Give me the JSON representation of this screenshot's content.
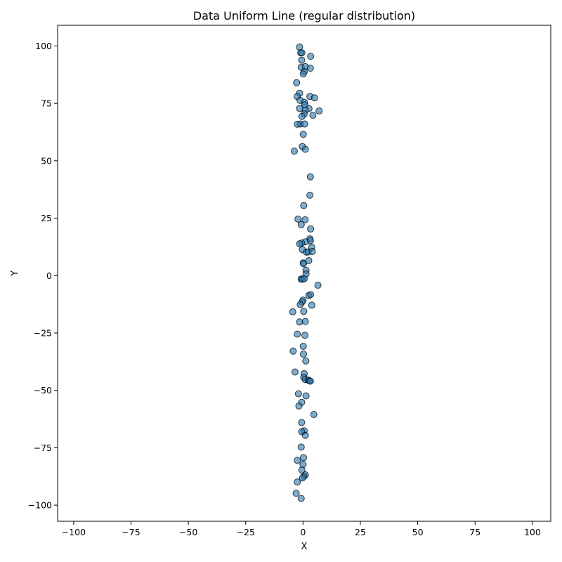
{
  "chart_data": {
    "type": "scatter",
    "title": "Data Uniform Line (regular distribution)",
    "xlabel": "X",
    "ylabel": "Y",
    "xlim": [
      -107,
      108
    ],
    "ylim": [
      -107,
      109
    ],
    "xticks": [
      -100,
      -75,
      -50,
      -25,
      0,
      25,
      50,
      75,
      100
    ],
    "yticks": [
      -100,
      -75,
      -50,
      -25,
      0,
      25,
      50,
      75,
      100
    ],
    "grid": false,
    "marker_color": "#1f77b4",
    "marker_edge_color": "#000000",
    "marker_alpha": 0.6,
    "points": [
      [
        -1.5,
        99.5
      ],
      [
        -1.0,
        97.0
      ],
      [
        -0.5,
        97.0
      ],
      [
        3.3,
        95.5
      ],
      [
        -0.6,
        93.8
      ],
      [
        -0.8,
        90.7
      ],
      [
        1.0,
        91.0
      ],
      [
        3.2,
        90.3
      ],
      [
        0.5,
        88.8
      ],
      [
        0.1,
        87.8
      ],
      [
        -2.8,
        84.0
      ],
      [
        -1.5,
        79.4
      ],
      [
        -2.5,
        78.0
      ],
      [
        3.0,
        78.0
      ],
      [
        5.0,
        77.4
      ],
      [
        -1.3,
        76.3
      ],
      [
        0.6,
        75.5
      ],
      [
        0.8,
        74.4
      ],
      [
        -1.5,
        72.8
      ],
      [
        2.6,
        72.7
      ],
      [
        1.0,
        72.0
      ],
      [
        7.0,
        71.7
      ],
      [
        0.5,
        70.4
      ],
      [
        4.3,
        69.8
      ],
      [
        -0.5,
        69.3
      ],
      [
        -1.2,
        66.0
      ],
      [
        -2.5,
        65.9
      ],
      [
        0.7,
        66.0
      ],
      [
        0.1,
        61.5
      ],
      [
        -0.3,
        56.2
      ],
      [
        1.0,
        55.0
      ],
      [
        -3.8,
        54.2
      ],
      [
        3.2,
        43.0
      ],
      [
        3.0,
        35.0
      ],
      [
        0.3,
        30.5
      ],
      [
        -2.2,
        24.6
      ],
      [
        0.9,
        24.3
      ],
      [
        -0.8,
        22.2
      ],
      [
        3.3,
        20.3
      ],
      [
        3.0,
        16.0
      ],
      [
        3.2,
        15.2
      ],
      [
        1.0,
        14.7
      ],
      [
        -0.6,
        14.2
      ],
      [
        -1.5,
        13.8
      ],
      [
        3.8,
        12.3
      ],
      [
        -0.3,
        11.3
      ],
      [
        1.5,
        10.2
      ],
      [
        2.3,
        10.3
      ],
      [
        4.0,
        10.5
      ],
      [
        2.5,
        6.5
      ],
      [
        0.1,
        5.5
      ],
      [
        0.2,
        5.2
      ],
      [
        1.3,
        2.3
      ],
      [
        1.3,
        0.7
      ],
      [
        -0.8,
        -1.5
      ],
      [
        -0.3,
        -1.6
      ],
      [
        0.5,
        -1.4
      ],
      [
        6.5,
        -4.2
      ],
      [
        2.5,
        -8.7
      ],
      [
        3.3,
        -8.3
      ],
      [
        0.0,
        -10.7
      ],
      [
        -0.4,
        -11.5
      ],
      [
        -1.2,
        -12.6
      ],
      [
        3.8,
        -12.9
      ],
      [
        0.3,
        -15.6
      ],
      [
        -4.5,
        -15.8
      ],
      [
        -1.5,
        -20.2
      ],
      [
        1.0,
        -20.0
      ],
      [
        -2.5,
        -25.5
      ],
      [
        0.8,
        -26.0
      ],
      [
        0.1,
        -30.8
      ],
      [
        0.2,
        -34.2
      ],
      [
        1.2,
        -37.2
      ],
      [
        -4.3,
        -32.9
      ],
      [
        -3.5,
        -42.0
      ],
      [
        0.5,
        -42.7
      ],
      [
        0.3,
        -44.3
      ],
      [
        1.0,
        -45.3
      ],
      [
        2.2,
        -45.5
      ],
      [
        2.8,
        -45.8
      ],
      [
        3.2,
        -46.0
      ],
      [
        -2.0,
        -51.5
      ],
      [
        1.3,
        -52.4
      ],
      [
        -0.6,
        -55.2
      ],
      [
        -1.8,
        -56.8
      ],
      [
        4.7,
        -60.5
      ],
      [
        -0.6,
        -64.0
      ],
      [
        0.5,
        -67.6
      ],
      [
        -0.6,
        -68.0
      ],
      [
        1.0,
        -69.6
      ],
      [
        -0.8,
        -74.7
      ],
      [
        0.2,
        -79.3
      ],
      [
        -2.5,
        -80.5
      ],
      [
        0.0,
        -82.3
      ],
      [
        -0.5,
        -84.7
      ],
      [
        1.0,
        -86.8
      ],
      [
        0.4,
        -87.4
      ],
      [
        -0.2,
        -88.1
      ],
      [
        -2.5,
        -89.9
      ],
      [
        -3.0,
        -94.8
      ],
      [
        -0.8,
        -97.1
      ]
    ]
  }
}
